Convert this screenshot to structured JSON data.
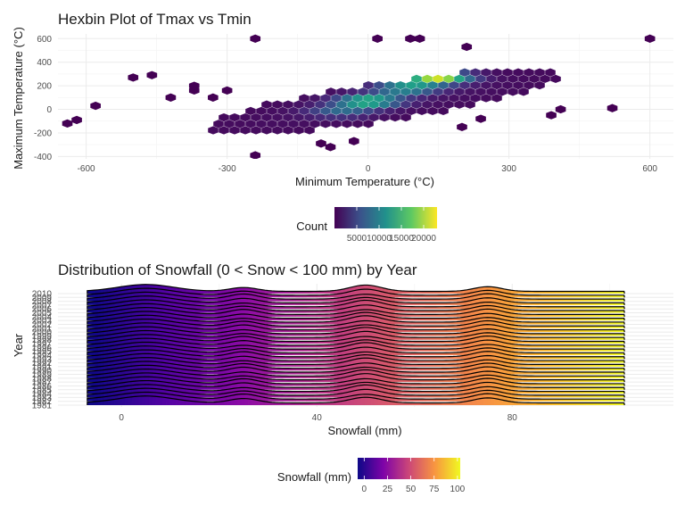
{
  "chart_data": [
    {
      "type": "hexbin",
      "title": "Hexbin Plot of Tmax vs Tmin",
      "xlabel": "Minimum Temperature (°C)",
      "ylabel": "Maximum Temperature (°C)",
      "xlim": [
        -660,
        650
      ],
      "ylim": [
        -420,
        640
      ],
      "x_ticks": [
        -600,
        -300,
        0,
        300,
        600
      ],
      "y_ticks": [
        -400,
        -200,
        0,
        200,
        400,
        600
      ],
      "grid": true,
      "legend": {
        "title": "Count",
        "position": "bottom",
        "colormap": "viridis",
        "range": [
          0,
          23000
        ],
        "ticks": [
          5000,
          10000,
          15000,
          20000
        ]
      },
      "outlier_points": [
        [
          -580,
          30
        ],
        [
          -620,
          -90
        ],
        [
          -640,
          -120
        ],
        [
          -500,
          270
        ],
        [
          -460,
          290
        ],
        [
          -420,
          100
        ],
        [
          -370,
          160
        ],
        [
          -370,
          200
        ],
        [
          -300,
          160
        ],
        [
          -330,
          100
        ],
        [
          -240,
          600
        ],
        [
          20,
          600
        ],
        [
          90,
          600
        ],
        [
          110,
          600
        ],
        [
          210,
          530
        ],
        [
          600,
          600
        ],
        [
          520,
          10
        ],
        [
          410,
          0
        ],
        [
          390,
          -50
        ],
        [
          -240,
          -390
        ],
        [
          -80,
          -320
        ],
        [
          -100,
          -290
        ],
        [
          -30,
          -270
        ],
        [
          200,
          -150
        ],
        [
          240,
          -80
        ]
      ],
      "density_centers": [
        {
          "x": 150,
          "y": 270,
          "count": 23000
        },
        {
          "x": 0,
          "y": 70,
          "count": 18000
        },
        {
          "x": 80,
          "y": 180,
          "count": 15000
        },
        {
          "x": -60,
          "y": -20,
          "count": 9000
        }
      ]
    },
    {
      "type": "ridgeline",
      "title": "Distribution of Snowfall (0 < Snow < 100 mm) by Year",
      "xlabel": "Snowfall (mm)",
      "ylabel": "Year",
      "xlim": [
        -13,
        113
      ],
      "x_ticks": [
        0,
        40,
        80
      ],
      "years_visible_labels": [
        "1981",
        "1982",
        "1983",
        "1984",
        "1985",
        "1986",
        "1987",
        "1988",
        "1989",
        "1990",
        "1991",
        "1992",
        "1993",
        "1994",
        "1995",
        "1996",
        "1997",
        "1998",
        "1999",
        "2000",
        "2001",
        "2002",
        "2003",
        "2004",
        "2005",
        "2006",
        "2007",
        "2008",
        "2009",
        "2010"
      ],
      "series_count": 30,
      "x_range_data": [
        -7,
        103
      ],
      "density_peaks_x": [
        5,
        25,
        50,
        75
      ],
      "grid": true,
      "legend": {
        "title": "Snowfall (mm)",
        "position": "bottom",
        "colormap": "plasma",
        "range": [
          -7,
          103
        ],
        "ticks": [
          0,
          25,
          50,
          75,
          100
        ]
      }
    }
  ]
}
